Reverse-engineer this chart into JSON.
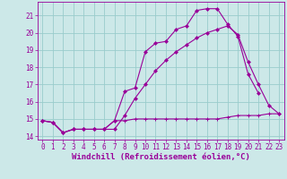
{
  "background_color": "#cce8e8",
  "grid_color": "#99cccc",
  "line_color": "#990099",
  "marker_color": "#990099",
  "xlabel": "Windchill (Refroidissement éolien,°C)",
  "xlabel_fontsize": 6.5,
  "tick_fontsize": 5.5,
  "xlim": [
    -0.5,
    23.5
  ],
  "ylim": [
    13.8,
    21.8
  ],
  "yticks": [
    14,
    15,
    16,
    17,
    18,
    19,
    20,
    21
  ],
  "xticks": [
    0,
    1,
    2,
    3,
    4,
    5,
    6,
    7,
    8,
    9,
    10,
    11,
    12,
    13,
    14,
    15,
    16,
    17,
    18,
    19,
    20,
    21,
    22,
    23
  ],
  "series1_x": [
    0,
    1,
    2,
    3,
    4,
    5,
    6,
    7,
    8,
    9,
    10,
    11,
    12,
    13,
    14,
    15,
    16,
    17,
    18,
    19,
    20,
    21,
    22,
    23
  ],
  "series1_y": [
    14.9,
    14.8,
    14.2,
    14.4,
    14.4,
    14.4,
    14.4,
    14.9,
    14.9,
    15.0,
    15.0,
    15.0,
    15.0,
    15.0,
    15.0,
    15.0,
    15.0,
    15.0,
    15.1,
    15.2,
    15.2,
    15.2,
    15.3,
    15.3
  ],
  "series2_x": [
    0,
    1,
    2,
    3,
    4,
    5,
    6,
    7,
    8,
    9,
    10,
    11,
    12,
    13,
    14,
    15,
    16,
    17,
    18,
    19,
    20,
    21
  ],
  "series2_y": [
    14.9,
    14.8,
    14.2,
    14.4,
    14.4,
    14.4,
    14.4,
    14.9,
    16.6,
    16.8,
    18.9,
    19.4,
    19.5,
    20.2,
    20.4,
    21.3,
    21.4,
    21.4,
    20.5,
    19.8,
    17.6,
    16.5
  ],
  "series3_x": [
    0,
    1,
    2,
    3,
    4,
    5,
    6,
    7,
    8,
    9,
    10,
    11,
    12,
    13,
    14,
    15,
    16,
    17,
    18,
    19,
    20,
    21,
    22,
    23
  ],
  "series3_y": [
    14.9,
    14.8,
    14.2,
    14.4,
    14.4,
    14.4,
    14.4,
    14.4,
    15.2,
    16.2,
    17.0,
    17.8,
    18.4,
    18.9,
    19.3,
    19.7,
    20.0,
    20.2,
    20.4,
    19.9,
    18.3,
    17.0,
    15.8,
    15.3
  ]
}
